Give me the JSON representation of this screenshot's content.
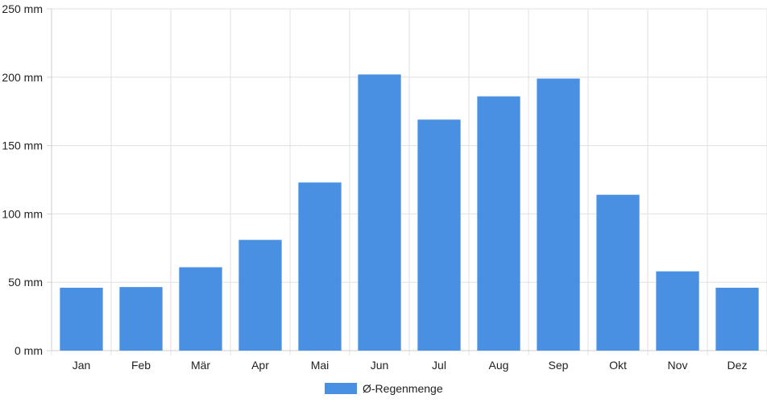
{
  "chart_data": {
    "type": "bar",
    "categories": [
      "Jan",
      "Feb",
      "Mär",
      "Apr",
      "Mai",
      "Jun",
      "Jul",
      "Aug",
      "Sep",
      "Okt",
      "Nov",
      "Dez"
    ],
    "series": [
      {
        "name": "Ø-Regenmenge",
        "values": [
          46,
          46.5,
          61,
          81,
          123,
          202,
          169,
          186,
          199,
          114,
          58,
          46
        ],
        "color": "#4a90e2"
      }
    ],
    "y_ticks": [
      "0 mm",
      "50 mm",
      "100 mm",
      "150 mm",
      "200 mm",
      "250 mm"
    ],
    "ylim": [
      0,
      250
    ],
    "ytick_step": 50,
    "grid": true,
    "legend_position": "bottom-center"
  }
}
